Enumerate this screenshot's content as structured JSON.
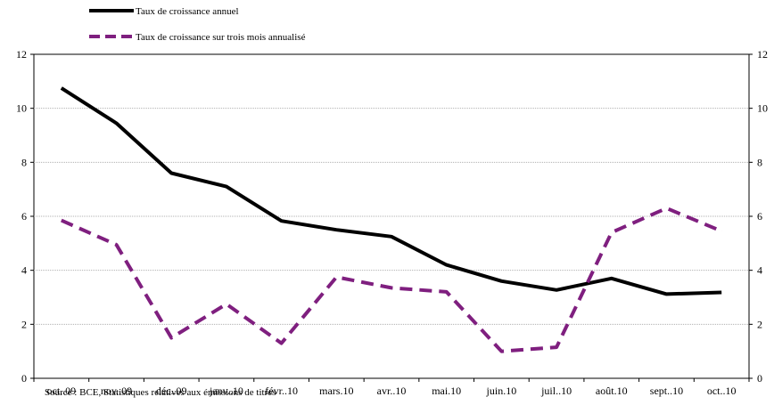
{
  "chart_data": {
    "type": "line",
    "categories": [
      "oct..09",
      "nov..09",
      "déc..09",
      "janv..10",
      "févr..10",
      "mars.10",
      "avr..10",
      "mai.10",
      "juin.10",
      "juil..10",
      "août.10",
      "sept..10",
      "oct..10"
    ],
    "series": [
      {
        "name": "Taux de croissance annuel",
        "values": [
          10.75,
          9.45,
          7.6,
          7.1,
          5.83,
          5.5,
          5.25,
          4.2,
          3.6,
          3.27,
          3.7,
          3.12,
          3.18
        ],
        "color": "#000000",
        "style": "solid"
      },
      {
        "name": "Taux de croissance sur trois mois annualisé",
        "values": [
          5.85,
          4.95,
          1.5,
          2.75,
          1.3,
          3.75,
          3.35,
          3.2,
          1.0,
          1.15,
          5.4,
          6.3,
          5.45
        ],
        "color": "#7f1f7f",
        "style": "dashed"
      }
    ],
    "yticks": [
      "0",
      "2",
      "4",
      "6",
      "8",
      "10",
      "12"
    ],
    "ylim": [
      0,
      12
    ],
    "grid": true,
    "legend_position": "top-left",
    "source": "Source : BCE, Statistiques relatives aux émissions de titres"
  }
}
